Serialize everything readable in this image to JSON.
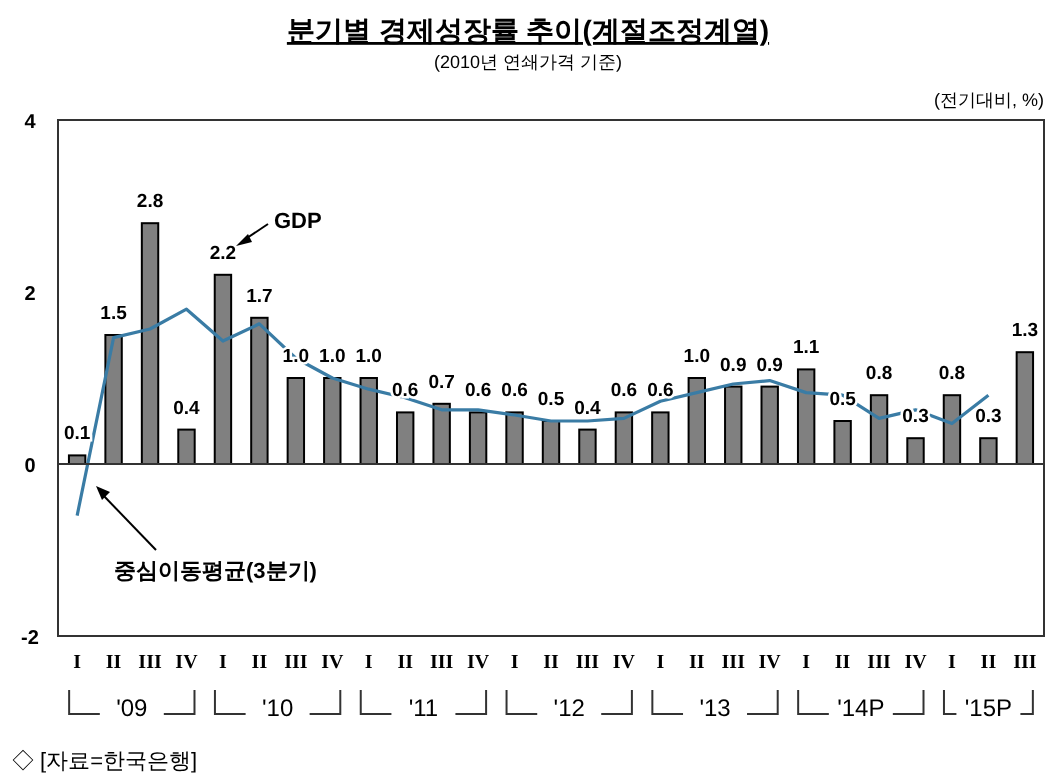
{
  "chart_data": {
    "type": "bar",
    "title": "분기별 경제성장률 추이(계절조정계열)",
    "subtitle": "(2010년 연쇄가격 기준)",
    "categories": [
      "I",
      "II",
      "III",
      "IV",
      "I",
      "II",
      "III",
      "IV",
      "I",
      "II",
      "III",
      "IV",
      "I",
      "II",
      "III",
      "IV",
      "I",
      "II",
      "III",
      "IV",
      "I",
      "II",
      "III",
      "IV",
      "I",
      "II",
      "III"
    ],
    "series": [
      {
        "name": "GDP",
        "color": "#808080",
        "values": [
          0.1,
          1.5,
          2.8,
          0.4,
          2.2,
          1.7,
          1.0,
          1.0,
          1.0,
          0.6,
          0.7,
          0.6,
          0.6,
          0.5,
          0.4,
          0.6,
          0.6,
          1.0,
          0.9,
          0.9,
          1.1,
          0.5,
          0.8,
          0.3,
          0.8,
          0.3,
          1.3
        ],
        "value_labels": [
          "0.1",
          "1.5",
          "2.8",
          "0.4",
          "2.2",
          "1.7",
          "1.0",
          "1.0",
          "1.0",
          "0.6",
          "0.7",
          "0.6",
          "0.6",
          "0.5",
          "0.4",
          "0.6",
          "0.6",
          "1.0",
          "0.9",
          "0.9",
          "1.1",
          "0.5",
          "0.8",
          "0.3",
          "0.8",
          "0.3",
          "1.3"
        ]
      },
      {
        "name": "중심이동평균(3분기)",
        "type": "line",
        "color": "#3a7ca5",
        "values": [
          -0.6,
          1.47,
          1.57,
          1.8,
          1.43,
          1.63,
          1.23,
          1.0,
          0.87,
          0.77,
          0.63,
          0.63,
          0.57,
          0.5,
          0.5,
          0.53,
          0.73,
          0.83,
          0.93,
          0.97,
          0.83,
          0.8,
          0.53,
          0.63,
          0.47,
          0.8,
          null
        ]
      }
    ],
    "ylim": [
      -2,
      4
    ],
    "yticks": [
      -2,
      0,
      2,
      4
    ],
    "marker": "none",
    "annotations": [
      "(전기대비, %)",
      "'09",
      "'10",
      "'11",
      "'12",
      "'13",
      "'14P",
      "'15P",
      "◇ [자료=한국은행]"
    ]
  }
}
